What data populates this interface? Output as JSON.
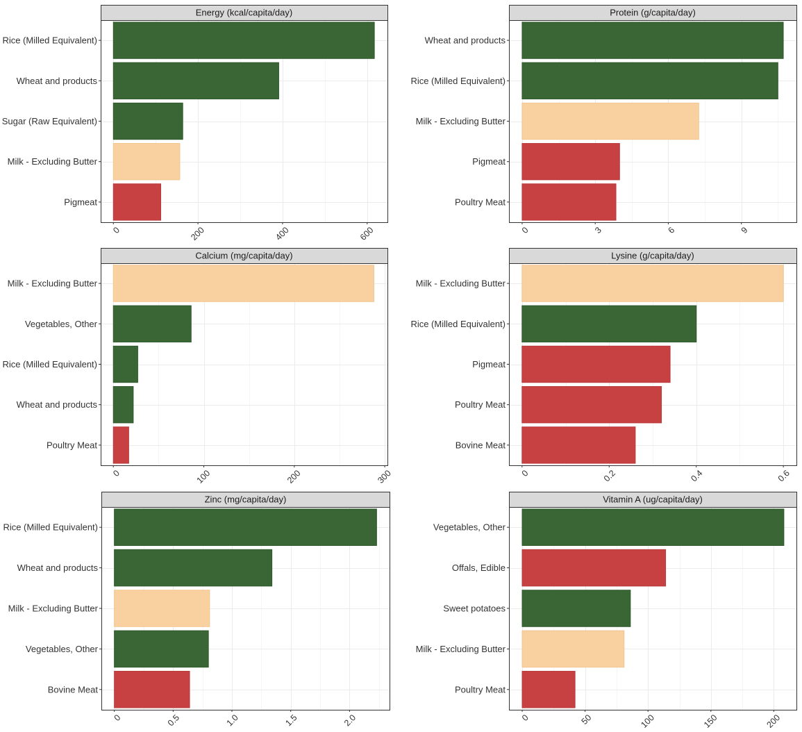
{
  "colors": {
    "green": "#3a6635",
    "tan": "#f9d09f",
    "red": "#c74142"
  },
  "chart_data": [
    {
      "type": "bar",
      "orientation": "horizontal",
      "title": "Energy (kcal/capita/day)",
      "categories": [
        "Rice (Milled Equivalent)",
        "Wheat and products",
        "Sugar (Raw Equivalent)",
        "Milk - Excluding Butter",
        "Pigmeat"
      ],
      "values": [
        617,
        391,
        164,
        157,
        112
      ],
      "bar_colors": [
        "green",
        "green",
        "green",
        "tan",
        "red"
      ],
      "xlim": [
        -30,
        648
      ],
      "ticks": [
        0,
        200,
        400,
        600
      ],
      "tick_labels": [
        "0",
        "200",
        "400",
        "600"
      ],
      "minor_ticks": [
        100,
        300,
        500
      ],
      "grid": true
    },
    {
      "type": "bar",
      "orientation": "horizontal",
      "title": "Protein (g/capita/day)",
      "categories": [
        "Wheat and products",
        "Rice (Milled Equivalent)",
        "Milk - Excluding Butter",
        "Pigmeat",
        "Poultry Meat"
      ],
      "values": [
        10.72,
        10.5,
        7.25,
        4.0,
        3.85
      ],
      "bar_colors": [
        "green",
        "green",
        "tan",
        "red",
        "red"
      ],
      "xlim": [
        -0.54,
        11.26
      ],
      "ticks": [
        0,
        3,
        6,
        9
      ],
      "tick_labels": [
        "0",
        "3",
        "6",
        "9"
      ],
      "minor_ticks": [
        1.5,
        4.5,
        7.5,
        10.5
      ],
      "grid": true
    },
    {
      "type": "bar",
      "orientation": "horizontal",
      "title": "Calcium (mg/capita/day)",
      "categories": [
        "Milk - Excluding Butter",
        "Vegetables, Other",
        "Rice (Milled Equivalent)",
        "Wheat and products",
        "Poultry Meat"
      ],
      "values": [
        288,
        86,
        27,
        22,
        17
      ],
      "bar_colors": [
        "tan",
        "green",
        "green",
        "green",
        "red"
      ],
      "xlim": [
        -14,
        303
      ],
      "ticks": [
        0,
        100,
        200,
        300
      ],
      "tick_labels": [
        "0",
        "100",
        "200",
        "300"
      ],
      "minor_ticks": [
        50,
        150,
        250
      ],
      "grid": true
    },
    {
      "type": "bar",
      "orientation": "horizontal",
      "title": "Lysine (g/capita/day)",
      "categories": [
        "Milk - Excluding Butter",
        "Rice (Milled Equivalent)",
        "Pigmeat",
        "Poultry Meat",
        "Bovine Meat"
      ],
      "values": [
        0.6,
        0.4,
        0.34,
        0.32,
        0.26
      ],
      "bar_colors": [
        "tan",
        "green",
        "red",
        "red",
        "red"
      ],
      "xlim": [
        -0.03,
        0.63
      ],
      "ticks": [
        0,
        0.2,
        0.4,
        0.6
      ],
      "tick_labels": [
        "0",
        "0.2",
        "0.4",
        "0.6"
      ],
      "minor_ticks": [
        0.1,
        0.3,
        0.5
      ],
      "grid": true
    },
    {
      "type": "bar",
      "orientation": "horizontal",
      "title": "Zinc (mg/capita/day)",
      "categories": [
        "Rice (Milled Equivalent)",
        "Wheat and products",
        "Milk - Excluding Butter",
        "Vegetables, Other",
        "Bovine Meat"
      ],
      "values": [
        2.23,
        1.34,
        0.81,
        0.8,
        0.64
      ],
      "bar_colors": [
        "green",
        "green",
        "tan",
        "green",
        "red"
      ],
      "xlim": [
        -0.11,
        2.34
      ],
      "ticks": [
        0,
        0.5,
        1.0,
        1.5,
        2.0
      ],
      "tick_labels": [
        "0",
        "0.5",
        "1.0",
        "1.5",
        "2.0"
      ],
      "minor_ticks": [
        0.25,
        0.75,
        1.25,
        1.75,
        2.25
      ],
      "grid": true
    },
    {
      "type": "bar",
      "orientation": "horizontal",
      "title": "Vitamin A (ug/capita/day)",
      "categories": [
        "Vegetables, Other",
        "Offals, Edible",
        "Sweet potatoes",
        "Milk - Excluding Butter",
        "Poultry Meat"
      ],
      "values": [
        208,
        114,
        86,
        81,
        42
      ],
      "bar_colors": [
        "green",
        "red",
        "green",
        "tan",
        "red"
      ],
      "xlim": [
        -10.5,
        218
      ],
      "ticks": [
        0,
        50,
        100,
        150,
        200
      ],
      "tick_labels": [
        "0",
        "50",
        "100",
        "150",
        "200"
      ],
      "minor_ticks": [
        25,
        75,
        125,
        175
      ],
      "grid": true
    }
  ]
}
